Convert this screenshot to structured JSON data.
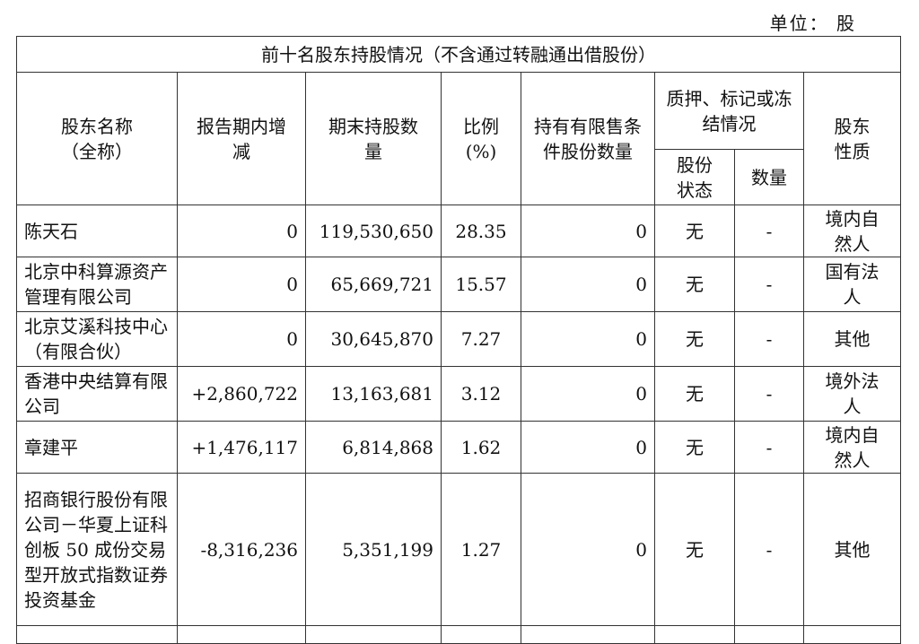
{
  "unit_label": "单位： 股",
  "table_title": "前十名股东持股情况（不含通过转融通出借股份）",
  "headers": {
    "name": "股东名称（全称）",
    "change": "报告期内增减",
    "shares": "期末持股数量",
    "ratio": "比例(%)",
    "restricted": "持有有限售条件股份数量",
    "pledge": "质押、标记或冻结情况",
    "pledge_status": "股份状态",
    "pledge_qty": "数量",
    "nature": "股东性质"
  },
  "rows": [
    {
      "name": "陈天石",
      "change": "0",
      "shares": "119,530,650",
      "ratio": "28.35",
      "restricted": "0",
      "status": "无",
      "qty": "-",
      "nature": "境内自然人"
    },
    {
      "name": "北京中科算源资产管理有限公司",
      "change": "0",
      "shares": "65,669,721",
      "ratio": "15.57",
      "restricted": "0",
      "status": "无",
      "qty": "-",
      "nature": "国有法人"
    },
    {
      "name": "北京艾溪科技中心（有限合伙）",
      "change": "0",
      "shares": "30,645,870",
      "ratio": "7.27",
      "restricted": "0",
      "status": "无",
      "qty": "-",
      "nature": "其他"
    },
    {
      "name": "香港中央结算有限公司",
      "change": "+2,860,722",
      "shares": "13,163,681",
      "ratio": "3.12",
      "restricted": "0",
      "status": "无",
      "qty": "-",
      "nature": "境外法人"
    },
    {
      "name": "章建平",
      "change": "+1,476,117",
      "shares": "6,814,868",
      "ratio": "1.62",
      "restricted": "0",
      "status": "无",
      "qty": "-",
      "nature": "境内自然人"
    },
    {
      "name": "招商银行股份有限公司－华夏上证科创板 50 成份交易型开放式指数证券投资基金",
      "change": "-8,316,236",
      "shares": "5,351,199",
      "ratio": "1.27",
      "restricted": "0",
      "status": "无",
      "qty": "-",
      "nature": "其他"
    }
  ]
}
